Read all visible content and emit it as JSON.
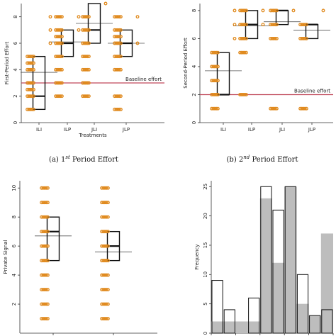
{
  "captions": {
    "a": "(a) 1st Period Effort",
    "b": "(b) 2nd Period Effort"
  },
  "chart_data": [
    {
      "id": "a",
      "type": "box",
      "ylabel": "First-Period Effort",
      "xlabel": "Treatments",
      "categories": [
        "ILI",
        "ILP",
        "JLI",
        "JLP"
      ],
      "yticks": [
        0,
        2,
        4,
        6,
        8
      ],
      "ylim": [
        0,
        9
      ],
      "baseline": {
        "value": 3,
        "label": "Baseline effort"
      },
      "boxes": [
        {
          "q1": 1,
          "median": 2,
          "q3": 5,
          "mean": 3.8
        },
        {
          "q1": 5,
          "median": 6,
          "q3": 7,
          "mean": 6.1
        },
        {
          "q1": 6,
          "median": 7,
          "q3": 9,
          "mean": 7.5
        },
        {
          "q1": 5,
          "median": 6,
          "q3": 7,
          "mean": 6.0
        }
      ],
      "points": [
        {
          "x": 0,
          "y": [
            1,
            2,
            2.5,
            3,
            4,
            4.5,
            5
          ]
        },
        {
          "x": 1,
          "y": [
            2,
            3,
            4,
            5,
            6,
            6.5,
            7,
            8
          ]
        },
        {
          "x": 2,
          "y": [
            2,
            3,
            4,
            5,
            6,
            7,
            8
          ]
        },
        {
          "x": 3,
          "y": [
            1,
            2,
            4,
            5,
            6,
            6.5,
            7,
            8
          ]
        }
      ],
      "side_points": [
        {
          "x": 0,
          "y": [
            8,
            7,
            6
          ]
        },
        {
          "x": 1,
          "y": [
            8,
            7
          ]
        },
        {
          "x": 2,
          "y": [
            9
          ]
        },
        {
          "x": 3,
          "y": [
            8,
            6
          ]
        }
      ]
    },
    {
      "id": "b",
      "type": "box",
      "ylabel": "Second-Period Effort",
      "xlabel": "",
      "categories": [
        "ILI",
        "ILP",
        "JLI",
        "JLP"
      ],
      "yticks": [
        0,
        2,
        4,
        6,
        8
      ],
      "ylim": [
        0,
        8.5
      ],
      "baseline": {
        "value": 2,
        "label": "Baseline effort"
      },
      "boxes": [
        {
          "q1": 2,
          "median": 2,
          "q3": 5,
          "mean": 3.7
        },
        {
          "q1": 6,
          "median": 7,
          "q3": 8,
          "mean": 6.9
        },
        {
          "q1": 7,
          "median": 8,
          "q3": 8,
          "mean": 7.2
        },
        {
          "q1": 6,
          "median": 7,
          "q3": 7,
          "mean": 6.6
        }
      ],
      "points": [
        {
          "x": 0,
          "y": [
            1,
            2,
            3,
            4,
            5
          ]
        },
        {
          "x": 1,
          "y": [
            2,
            5,
            6,
            7,
            8
          ]
        },
        {
          "x": 2,
          "y": [
            1,
            6,
            7,
            8
          ]
        },
        {
          "x": 3,
          "y": [
            1,
            6,
            7
          ]
        }
      ],
      "side_points": [
        {
          "x": 0,
          "y": [
            8,
            7,
            6
          ]
        },
        {
          "x": 1,
          "y": [
            8,
            7
          ]
        },
        {
          "x": 2,
          "y": [
            8
          ]
        },
        {
          "x": 3,
          "y": [
            8
          ]
        }
      ]
    },
    {
      "id": "c",
      "type": "box",
      "ylabel": "Private Signal",
      "xlabel": "",
      "categories": [
        "",
        ""
      ],
      "yticks": [
        2,
        4,
        6,
        8,
        10
      ],
      "ylim": [
        0,
        10.5
      ],
      "boxes": [
        {
          "q1": 5,
          "median": 7,
          "q3": 8,
          "mean": 6.7
        },
        {
          "q1": 5,
          "median": 6,
          "q3": 7,
          "mean": 5.6
        }
      ],
      "points": [
        {
          "x": 0,
          "y": [
            1,
            2,
            3,
            4,
            5,
            6,
            7,
            8,
            9,
            10
          ]
        },
        {
          "x": 1,
          "y": [
            1,
            2,
            3,
            4,
            5,
            6,
            7,
            8,
            9,
            10
          ]
        }
      ]
    },
    {
      "id": "d",
      "type": "bar",
      "ylabel": "Frequency",
      "xlabel": "",
      "yticks": [
        0,
        5,
        10,
        15,
        20,
        25
      ],
      "ylim": [
        0,
        26
      ],
      "series": [
        {
          "values": [
            2,
            2,
            2,
            2,
            23,
            12,
            25,
            5,
            3,
            17
          ]
        },
        {
          "values": [
            9,
            4,
            0,
            6,
            25,
            21,
            25,
            10,
            3,
            4
          ]
        }
      ]
    }
  ]
}
